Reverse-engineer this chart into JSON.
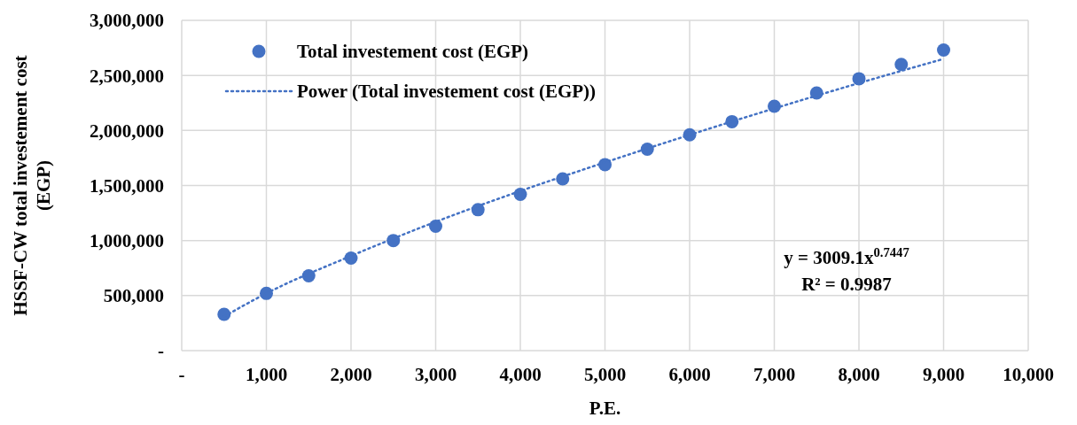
{
  "chart_data": {
    "type": "scatter",
    "xlabel": "P.E.",
    "ylabel": "HSSF-CW total investement cost (EGP)",
    "xlim": [
      0,
      10000
    ],
    "xticks": [
      {
        "value": 0,
        "label": "-"
      },
      {
        "value": 1000,
        "label": "1,000"
      },
      {
        "value": 2000,
        "label": "2,000"
      },
      {
        "value": 3000,
        "label": "3,000"
      },
      {
        "value": 4000,
        "label": "4,000"
      },
      {
        "value": 5000,
        "label": "5,000"
      },
      {
        "value": 6000,
        "label": "6,000"
      },
      {
        "value": 7000,
        "label": "7,000"
      },
      {
        "value": 8000,
        "label": "8,000"
      },
      {
        "value": 9000,
        "label": "9,000"
      },
      {
        "value": 10000,
        "label": "10,000"
      }
    ],
    "ylim": [
      0,
      3000000
    ],
    "yticks": [
      {
        "value": 0,
        "label": "-"
      },
      {
        "value": 500000,
        "label": "500,000"
      },
      {
        "value": 1000000,
        "label": "1,000,000"
      },
      {
        "value": 1500000,
        "label": "1,500,000"
      },
      {
        "value": 2000000,
        "label": "2,000,000"
      },
      {
        "value": 2500000,
        "label": "2,500,000"
      },
      {
        "value": 3000000,
        "label": "3,000,000"
      }
    ],
    "grid": true,
    "legend": "top left",
    "series": [
      {
        "name": "Total investement cost (EGP)",
        "color": "#4472c4",
        "marker": "circle",
        "x": [
          500,
          1000,
          1500,
          2000,
          2500,
          3000,
          3500,
          4000,
          4500,
          5000,
          5500,
          6000,
          6500,
          7000,
          7500,
          8000,
          8500,
          9000
        ],
        "values": [
          330000,
          520000,
          680000,
          840000,
          1000000,
          1130000,
          1280000,
          1420000,
          1560000,
          1690000,
          1830000,
          1960000,
          2080000,
          2220000,
          2340000,
          2470000,
          2600000,
          2730000
        ]
      },
      {
        "name": "Power (Total investement cost (EGP))",
        "type": "line",
        "color": "#4472c4",
        "marker": "none",
        "line_style": "dotted",
        "x": [
          500,
          1000,
          2000,
          3000,
          4000,
          5000,
          6000,
          7000,
          8000,
          9000
        ],
        "values": [
          310000,
          520000,
          860000,
          1170000,
          1450000,
          1710000,
          1960000,
          2200000,
          2430000,
          2650000
        ]
      }
    ],
    "annotations": [
      "y = 3009.1x$^{0.7447}$",
      "R² = 0.9987"
    ]
  }
}
